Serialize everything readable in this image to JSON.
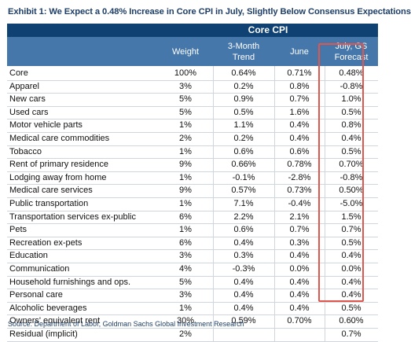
{
  "title": "Exhibit 1: We Expect a 0.48% Increase in Core CPI in July, Slightly Below Consensus Expectations",
  "band_label": "Core CPI",
  "columns": {
    "weight": "Weight",
    "trend": [
      "3-Month",
      "Trend"
    ],
    "june": "June",
    "forecast": [
      "July, GS",
      "Forecast"
    ]
  },
  "rows": [
    {
      "label": "Core",
      "weight": "100%",
      "trend": "0.64%",
      "june": "0.71%",
      "forecast": "0.48%"
    },
    {
      "label": "Apparel",
      "weight": "3%",
      "trend": "0.2%",
      "june": "0.8%",
      "forecast": "-0.8%"
    },
    {
      "label": "New cars",
      "weight": "5%",
      "trend": "0.9%",
      "june": "0.7%",
      "forecast": "1.0%"
    },
    {
      "label": "Used cars",
      "weight": "5%",
      "trend": "0.5%",
      "june": "1.6%",
      "forecast": "0.5%"
    },
    {
      "label": "Motor vehicle parts",
      "weight": "1%",
      "trend": "1.1%",
      "june": "0.4%",
      "forecast": "0.8%"
    },
    {
      "label": "Medical care commodities",
      "weight": "2%",
      "trend": "0.2%",
      "june": "0.4%",
      "forecast": "0.4%"
    },
    {
      "label": "Tobacco",
      "weight": "1%",
      "trend": "0.6%",
      "june": "0.6%",
      "forecast": "0.5%"
    },
    {
      "label": "Rent of primary residence",
      "weight": "9%",
      "trend": "0.66%",
      "june": "0.78%",
      "forecast": "0.70%"
    },
    {
      "label": "Lodging away from home",
      "weight": "1%",
      "trend": "-0.1%",
      "june": "-2.8%",
      "forecast": "-0.8%"
    },
    {
      "label": "Medical care services",
      "weight": "9%",
      "trend": "0.57%",
      "june": "0.73%",
      "forecast": "0.50%"
    },
    {
      "label": "Public transportation",
      "weight": "1%",
      "trend": "7.1%",
      "june": "-0.4%",
      "forecast": "-5.0%"
    },
    {
      "label": "Transportation services ex-public",
      "weight": "6%",
      "trend": "2.2%",
      "june": "2.1%",
      "forecast": "1.5%"
    },
    {
      "label": "Pets",
      "weight": "1%",
      "trend": "0.6%",
      "june": "0.7%",
      "forecast": "0.7%"
    },
    {
      "label": "Recreation ex-pets",
      "weight": "6%",
      "trend": "0.4%",
      "june": "0.3%",
      "forecast": "0.5%"
    },
    {
      "label": "Education",
      "weight": "3%",
      "trend": "0.3%",
      "june": "0.4%",
      "forecast": "0.4%"
    },
    {
      "label": "Communication",
      "weight": "4%",
      "trend": "-0.3%",
      "june": "0.0%",
      "forecast": "0.0%"
    },
    {
      "label": "Household furnishings and ops.",
      "weight": "5%",
      "trend": "0.4%",
      "june": "0.4%",
      "forecast": "0.4%"
    },
    {
      "label": "Personal care",
      "weight": "3%",
      "trend": "0.4%",
      "june": "0.4%",
      "forecast": "0.4%"
    },
    {
      "label": "Alcoholic beverages",
      "weight": "1%",
      "trend": "0.4%",
      "june": "0.4%",
      "forecast": "0.5%"
    },
    {
      "label": "Owners' equivalent rent",
      "weight": "30%",
      "trend": "0.59%",
      "june": "0.70%",
      "forecast": "0.60%"
    },
    {
      "label": "Residual (implicit)",
      "weight": "2%",
      "trend": "",
      "june": "",
      "forecast": "0.7%"
    }
  ],
  "source": "Source: Department of Labor, Goldman Sachs Global Investment Research",
  "colors": {
    "title": "#1f3f66",
    "band": "#0f4173",
    "header": "#4677aa",
    "highlight": "#e0564d"
  }
}
